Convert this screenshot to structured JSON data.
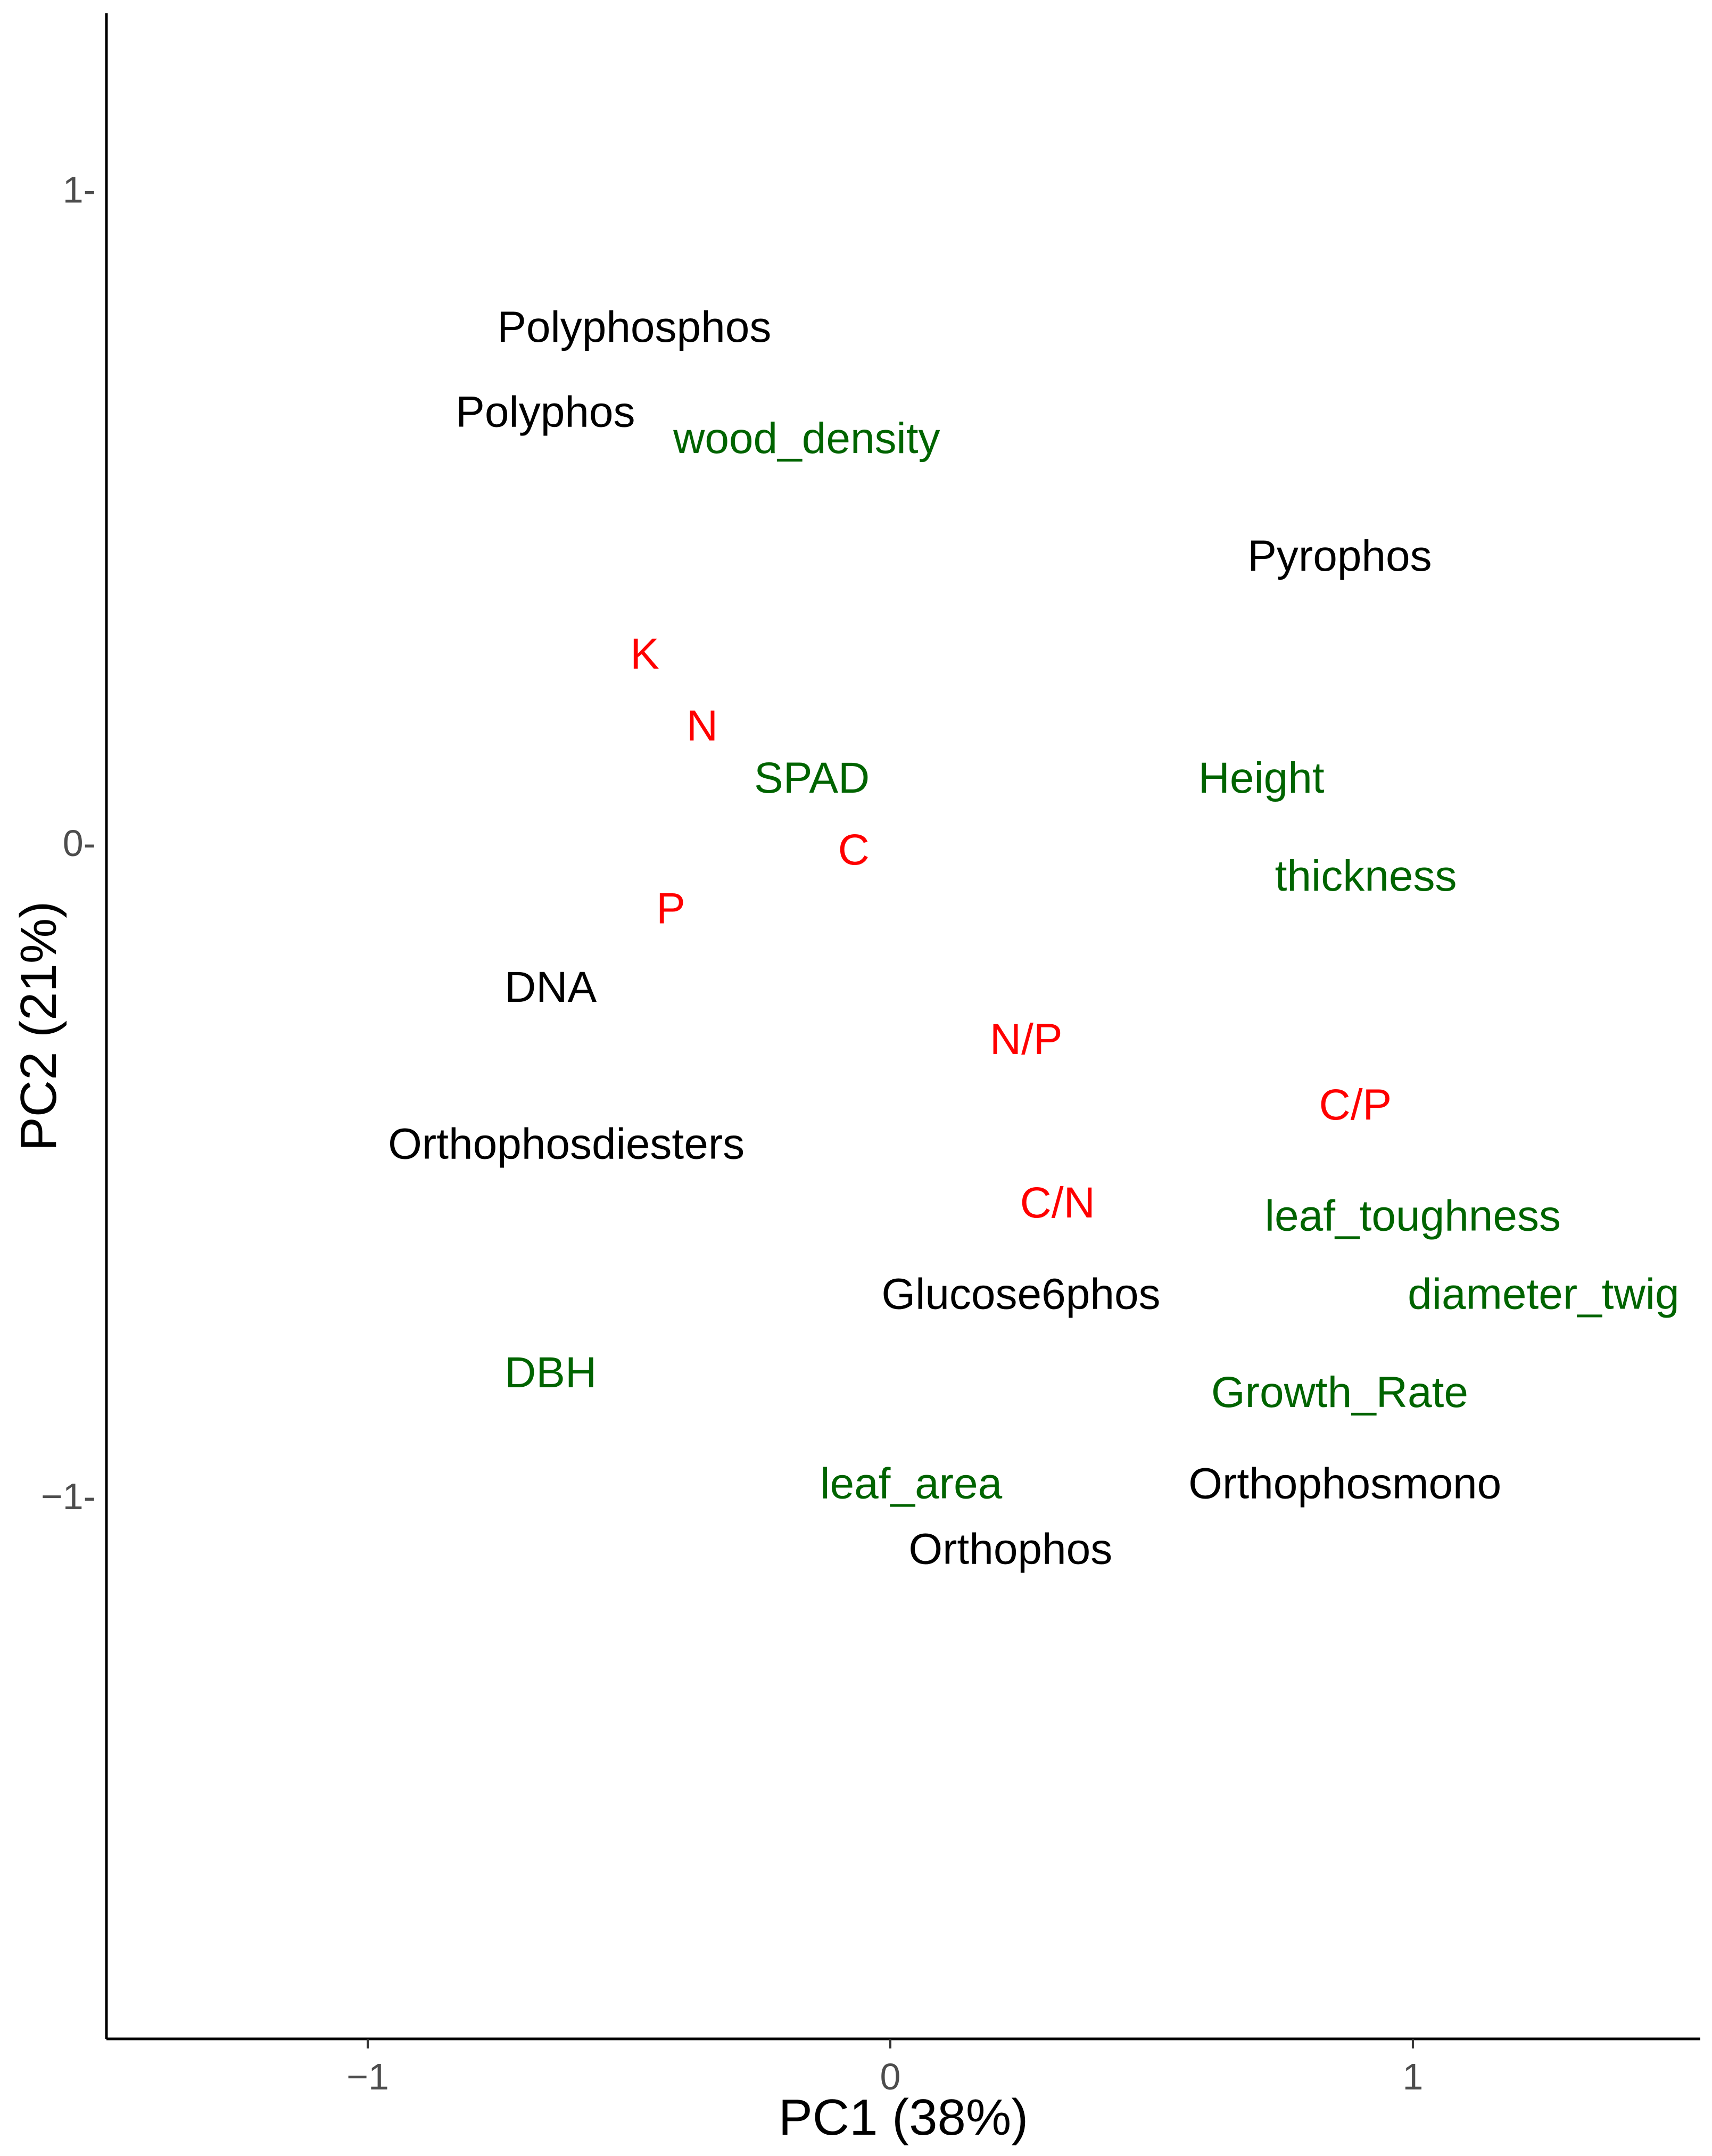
{
  "chart_data": {
    "type": "scatter",
    "title": "",
    "xlabel": "PC1 (38%)",
    "ylabel": "PC2 (21%)",
    "xlim": [
      -1.5,
      1.55
    ],
    "ylim": [
      -1.83,
      1.27
    ],
    "xticks": [
      -1,
      0,
      1
    ],
    "xtick_labels": [
      "−1",
      "0",
      "1"
    ],
    "yticks": [
      -1,
      0,
      1
    ],
    "ytick_labels": [
      "−1-",
      "0-",
      "1-"
    ],
    "grid": false,
    "legend": "none",
    "groups": [
      {
        "color": "#000000",
        "points": [
          {
            "label": "Polyphosphos",
            "x": -0.49,
            "y": 0.79
          },
          {
            "label": "Polyphos",
            "x": -0.66,
            "y": 0.66
          },
          {
            "label": "Pyrophos",
            "x": 0.86,
            "y": 0.44
          },
          {
            "label": "DNA",
            "x": -0.65,
            "y": -0.22
          },
          {
            "label": "Orthophosdiesters",
            "x": -0.62,
            "y": -0.46
          },
          {
            "label": "Glucose6phos",
            "x": 0.25,
            "y": -0.69
          },
          {
            "label": "Orthophosmono",
            "x": 0.87,
            "y": -0.98
          },
          {
            "label": "Orthophos",
            "x": 0.23,
            "y": -1.08
          }
        ]
      },
      {
        "color": "#ff0000",
        "points": [
          {
            "label": "K",
            "x": -0.47,
            "y": 0.29
          },
          {
            "label": "N",
            "x": -0.36,
            "y": 0.18
          },
          {
            "label": "C",
            "x": -0.07,
            "y": -0.01
          },
          {
            "label": "P",
            "x": -0.42,
            "y": -0.1
          },
          {
            "label": "N/P",
            "x": 0.26,
            "y": -0.3
          },
          {
            "label": "C/P",
            "x": 0.89,
            "y": -0.4
          },
          {
            "label": "C/N",
            "x": 0.32,
            "y": -0.55
          }
        ]
      },
      {
        "color": "#006400",
        "points": [
          {
            "label": "wood_density",
            "x": -0.16,
            "y": 0.62
          },
          {
            "label": "SPAD",
            "x": -0.15,
            "y": 0.1
          },
          {
            "label": "Height",
            "x": 0.71,
            "y": 0.1
          },
          {
            "label": "thickness",
            "x": 0.91,
            "y": -0.05
          },
          {
            "label": "leaf_toughness",
            "x": 1.0,
            "y": -0.57
          },
          {
            "label": "diameter_twig",
            "x": 1.25,
            "y": -0.69
          },
          {
            "label": "DBH",
            "x": -0.65,
            "y": -0.81
          },
          {
            "label": "Growth_Rate",
            "x": 0.86,
            "y": -0.84
          },
          {
            "label": "leaf_area",
            "x": 0.04,
            "y": -0.98
          }
        ]
      }
    ]
  }
}
